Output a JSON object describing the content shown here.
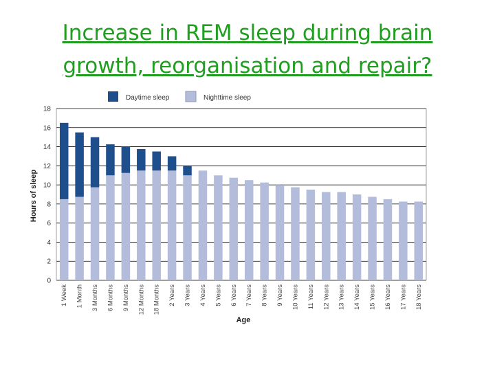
{
  "slide": {
    "title_line1": "Increase in REM sleep during brain",
    "title_line2": "growth, reorganisation and repair?"
  },
  "colors": {
    "daytime": "#1f4e8c",
    "nighttime": "#b3bcda",
    "title": "#1f9e1f",
    "grid": "#000000"
  },
  "chart_data": {
    "type": "bar",
    "stacked": true,
    "categories": [
      "1 Week",
      "1 Month",
      "3 Months",
      "6 Months",
      "9 Months",
      "12 Months",
      "18 Months",
      "2 Years",
      "3 Years",
      "4 Years",
      "5 Years",
      "6 Years",
      "7 Years",
      "8 Years",
      "9 Years",
      "10 Years",
      "11 Years",
      "12 Years",
      "13 Years",
      "14 Years",
      "15 Years",
      "16 Years",
      "17 Years",
      "18 Years"
    ],
    "series": [
      {
        "name": "Nighttime sleep",
        "values": [
          8.5,
          8.75,
          9.75,
          11,
          11.25,
          11.5,
          11.5,
          11.5,
          11,
          11.5,
          11,
          10.75,
          10.5,
          10.25,
          10,
          9.75,
          9.5,
          9.25,
          9.25,
          9,
          8.75,
          8.5,
          8.25,
          8.25
        ]
      },
      {
        "name": "Daytime sleep",
        "values": [
          8,
          6.75,
          5.25,
          3.25,
          2.75,
          2.25,
          2,
          1.5,
          1,
          0,
          0,
          0,
          0,
          0,
          0,
          0,
          0,
          0,
          0,
          0,
          0,
          0,
          0,
          0
        ]
      }
    ],
    "xlabel": "Age",
    "ylabel": "Hours of sleep",
    "ylim": [
      0,
      18
    ],
    "yticks": [
      0,
      2,
      4,
      6,
      8,
      10,
      12,
      14,
      16,
      18
    ],
    "grid": true,
    "legend": "top"
  }
}
